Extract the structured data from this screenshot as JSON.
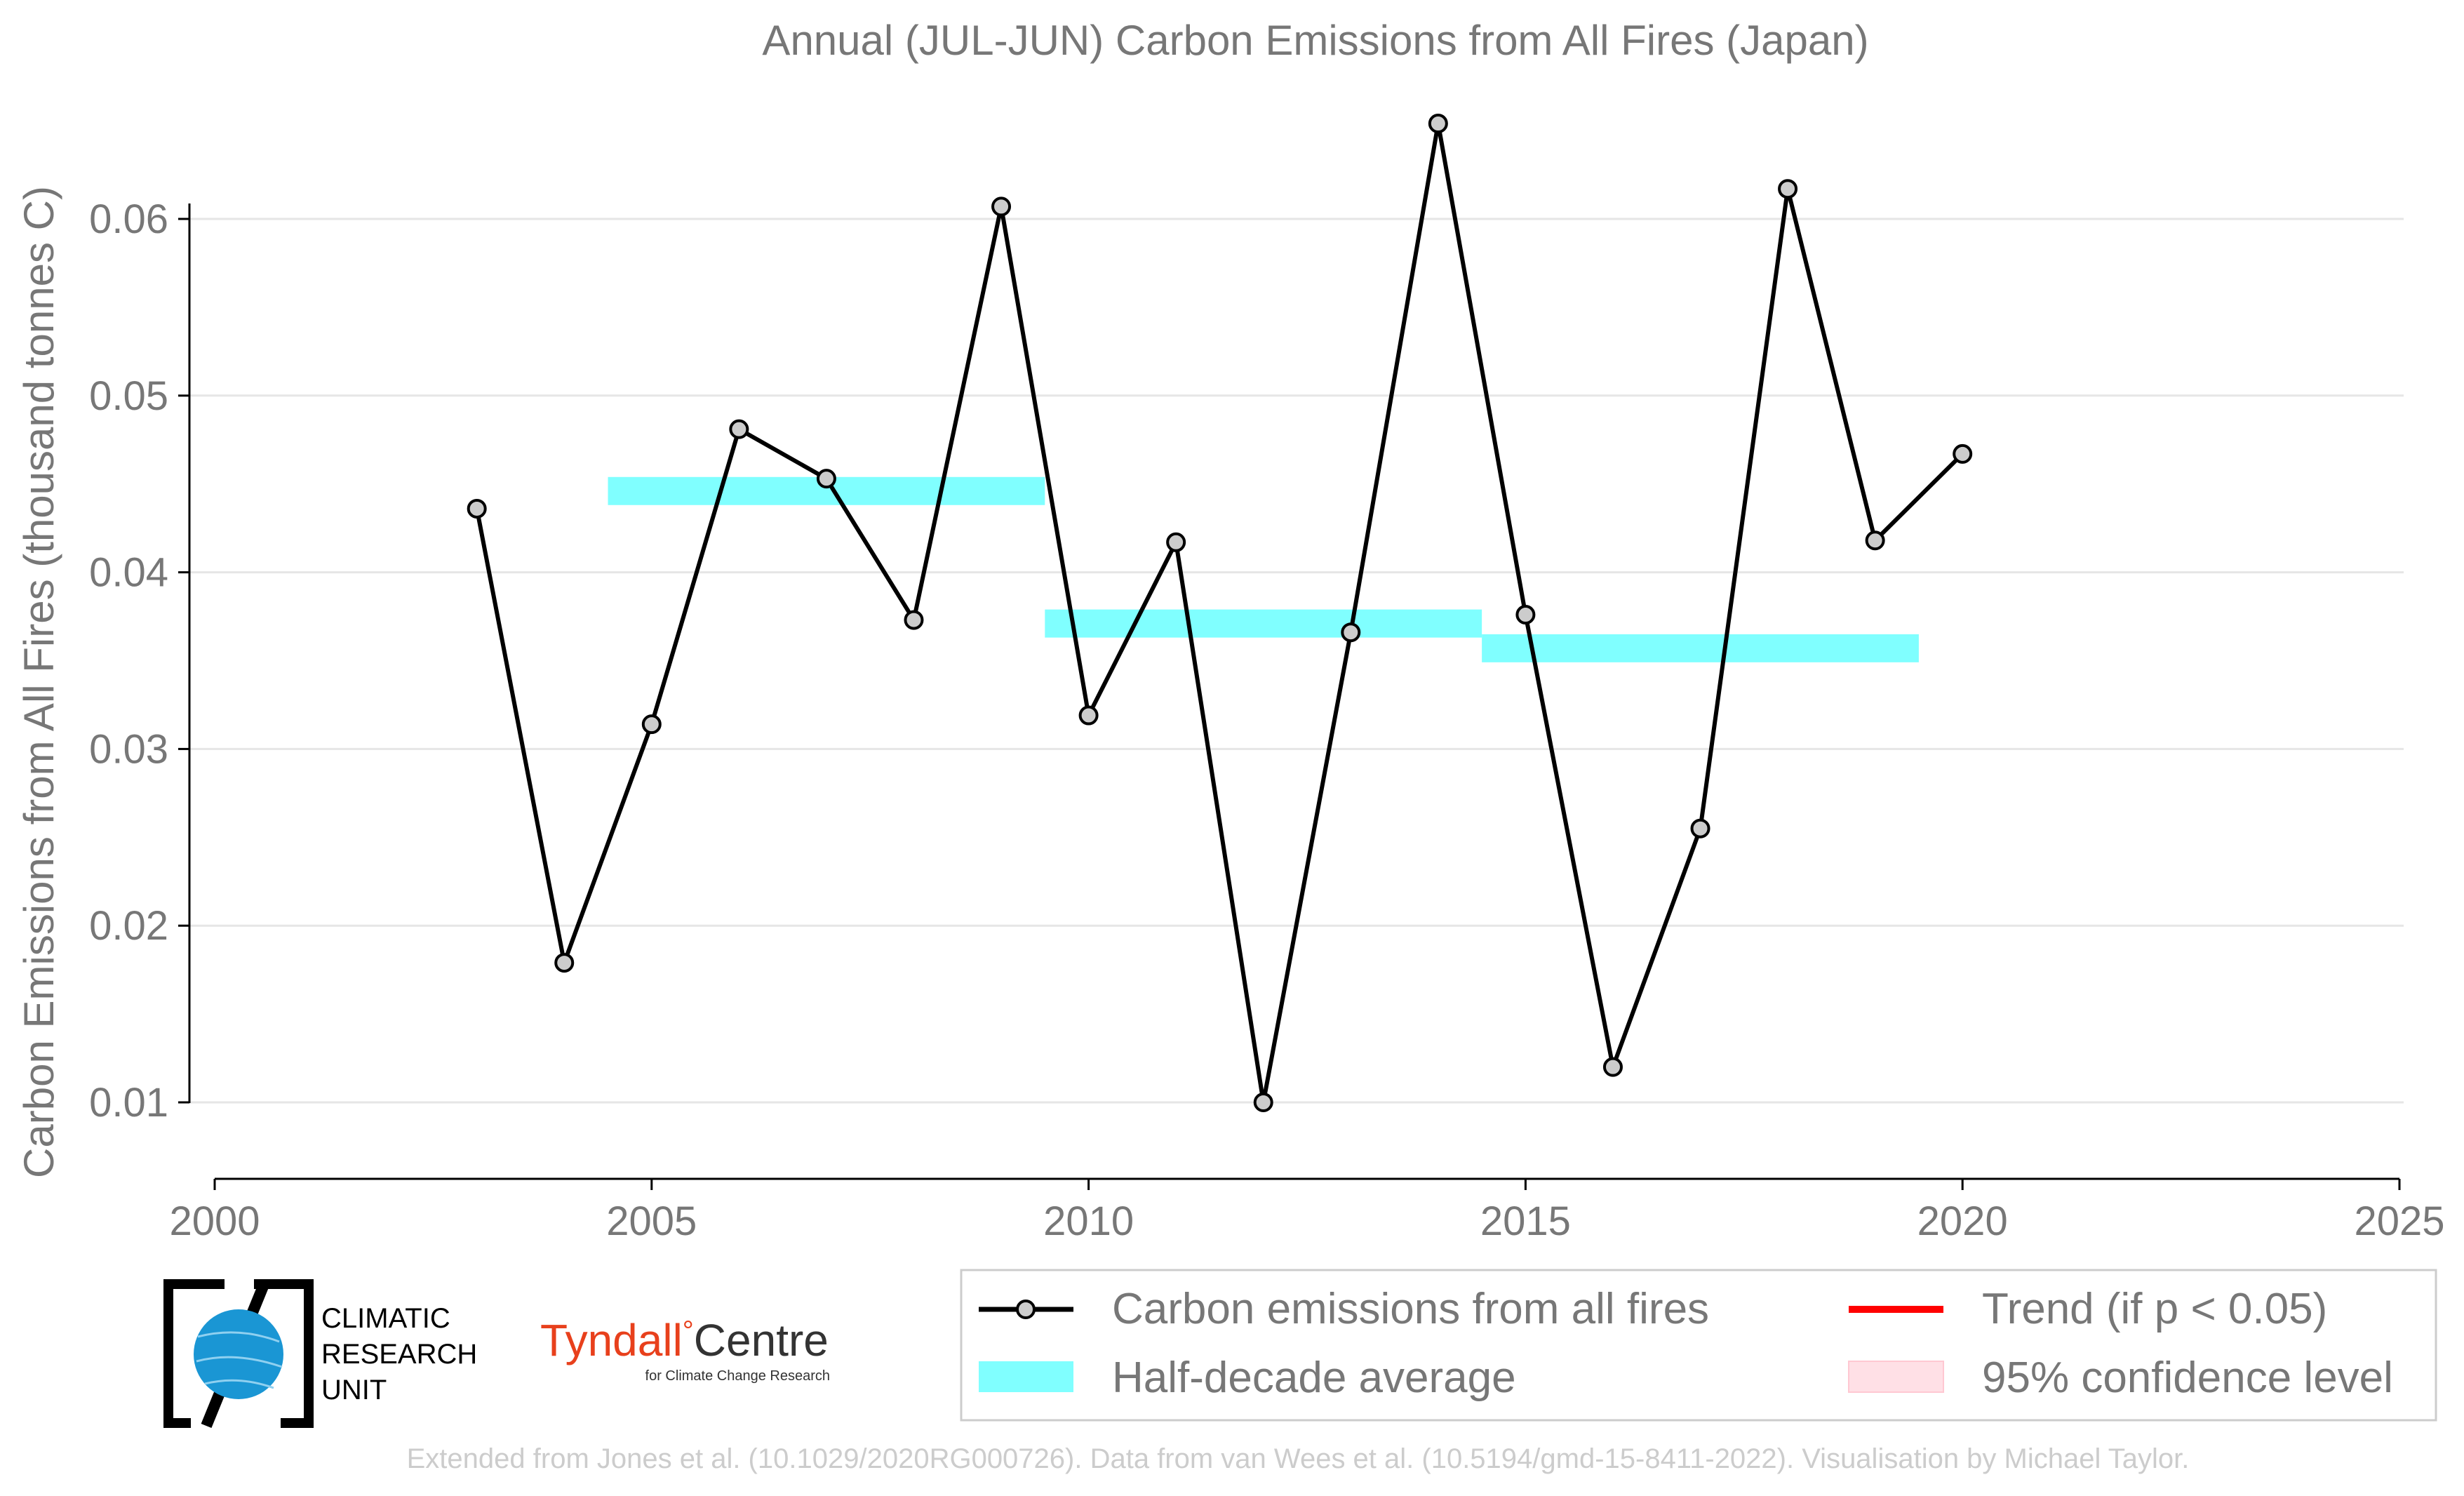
{
  "chart_data": {
    "type": "line",
    "title": "Annual (JUL-JUN) Carbon Emissions from All Fires (Japan)",
    "xlabel": "",
    "ylabel": "Carbon Emissions from All Fires (thousand tonnes C)",
    "xlim": [
      2000,
      2025
    ],
    "ylim": [
      0.005,
      0.068
    ],
    "x_ticks": [
      2000,
      2005,
      2010,
      2015,
      2020,
      2025
    ],
    "y_ticks": [
      0.01,
      0.02,
      0.03,
      0.04,
      0.05,
      0.06
    ],
    "y_tick_labels": [
      "0.01",
      "0.02",
      "0.03",
      "0.04",
      "0.05",
      "0.06"
    ],
    "grid": "horizontal",
    "legend_position": "bottom",
    "series": [
      {
        "name": "Carbon emissions from all fires",
        "color": "#000000",
        "x": [
          2003,
          2004,
          2005,
          2006,
          2007,
          2008,
          2009,
          2010,
          2011,
          2012,
          2013,
          2014,
          2015,
          2016,
          2017,
          2018,
          2019,
          2020
        ],
        "values": [
          0.0436,
          0.0179,
          0.0314,
          0.0481,
          0.0453,
          0.0373,
          0.0607,
          0.0319,
          0.0417,
          0.01,
          0.0366,
          0.0654,
          0.0376,
          0.012,
          0.0255,
          0.0617,
          0.0418,
          0.0467
        ]
      }
    ],
    "half_decade_average": {
      "name": "Half-decade average",
      "color": "#80ffff",
      "segments": [
        {
          "x_start": 2004.5,
          "x_end": 2009.5,
          "value": 0.0446
        },
        {
          "x_start": 2009.5,
          "x_end": 2014.5,
          "value": 0.0371
        },
        {
          "x_start": 2014.5,
          "x_end": 2019.5,
          "value": 0.0357
        }
      ]
    },
    "legend": [
      {
        "label": "Carbon emissions from all fires",
        "kind": "line-marker",
        "color": "#000000"
      },
      {
        "label": "Trend (if p < 0.05)",
        "kind": "line",
        "color": "#ff0000"
      },
      {
        "label": "Half-decade average",
        "kind": "band",
        "color": "#80ffff"
      },
      {
        "label": "95% confidence level",
        "kind": "band",
        "color": "#ffe0e6"
      }
    ]
  },
  "logos": {
    "cru_lines": [
      "CLIMATIC",
      "RESEARCH",
      "UNIT"
    ],
    "tyndall_main_red": "Tyndall",
    "tyndall_degree": "°",
    "tyndall_main_dark": "Centre",
    "tyndall_sub": "for Climate Change Research"
  },
  "footer": "Extended from Jones et al. (10.1029/2020RG000726). Data from van Wees et al. (10.5194/gmd-15-8411-2022). Visualisation by Michael Taylor."
}
